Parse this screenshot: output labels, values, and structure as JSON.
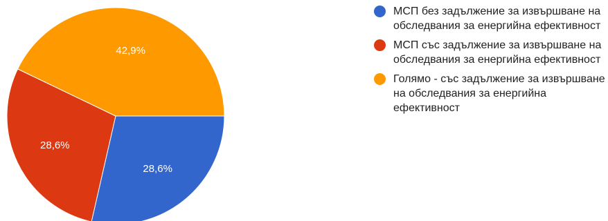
{
  "chart_data": {
    "type": "pie",
    "title": "",
    "slices": [
      {
        "label": "МСП без задължение за извършване на обследвания за енергийна ефективност",
        "value": 28.6,
        "value_label": "28,6%",
        "color": "#3366cc"
      },
      {
        "label": "МСП със задължение за извършване на обследвания за енергийна ефективност",
        "value": 28.6,
        "value_label": "28,6%",
        "color": "#dc3912"
      },
      {
        "label": "Голямо - със задължение за извършване на обследвания за енергийна ефективност",
        "value": 42.9,
        "value_label": "42,9%",
        "color": "#ff9900"
      }
    ],
    "legend_position": "right"
  }
}
